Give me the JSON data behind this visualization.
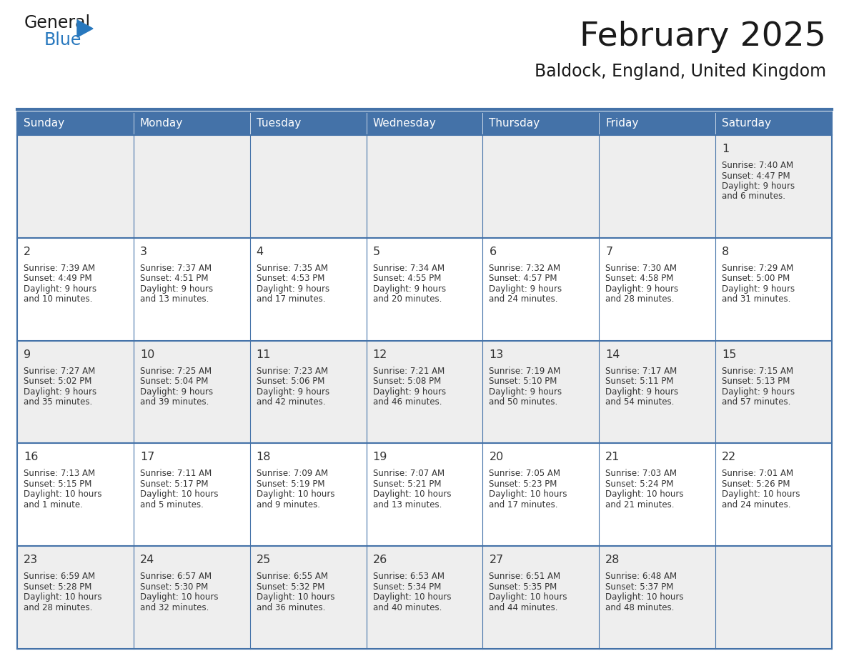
{
  "title": "February 2025",
  "subtitle": "Baldock, England, United Kingdom",
  "days_of_week": [
    "Sunday",
    "Monday",
    "Tuesday",
    "Wednesday",
    "Thursday",
    "Friday",
    "Saturday"
  ],
  "header_bg": "#4472A8",
  "header_text": "#FFFFFF",
  "row_bg_odd": "#EEEEEE",
  "row_bg_even": "#FFFFFF",
  "border_color": "#4472A8",
  "day_number_color": "#333333",
  "text_color": "#333333",
  "title_color": "#1a1a1a",
  "subtitle_color": "#1a1a1a",
  "logo_color_general": "#1a1a1a",
  "logo_color_blue": "#2878BE",
  "logo_triangle_color": "#2878BE",
  "calendar_data": [
    [
      null,
      null,
      null,
      null,
      null,
      null,
      {
        "day": 1,
        "sunrise": "7:40 AM",
        "sunset": "4:47 PM",
        "daylight": "9 hours and 6 minutes"
      }
    ],
    [
      {
        "day": 2,
        "sunrise": "7:39 AM",
        "sunset": "4:49 PM",
        "daylight": "9 hours and 10 minutes"
      },
      {
        "day": 3,
        "sunrise": "7:37 AM",
        "sunset": "4:51 PM",
        "daylight": "9 hours and 13 minutes"
      },
      {
        "day": 4,
        "sunrise": "7:35 AM",
        "sunset": "4:53 PM",
        "daylight": "9 hours and 17 minutes"
      },
      {
        "day": 5,
        "sunrise": "7:34 AM",
        "sunset": "4:55 PM",
        "daylight": "9 hours and 20 minutes"
      },
      {
        "day": 6,
        "sunrise": "7:32 AM",
        "sunset": "4:57 PM",
        "daylight": "9 hours and 24 minutes"
      },
      {
        "day": 7,
        "sunrise": "7:30 AM",
        "sunset": "4:58 PM",
        "daylight": "9 hours and 28 minutes"
      },
      {
        "day": 8,
        "sunrise": "7:29 AM",
        "sunset": "5:00 PM",
        "daylight": "9 hours and 31 minutes"
      }
    ],
    [
      {
        "day": 9,
        "sunrise": "7:27 AM",
        "sunset": "5:02 PM",
        "daylight": "9 hours and 35 minutes"
      },
      {
        "day": 10,
        "sunrise": "7:25 AM",
        "sunset": "5:04 PM",
        "daylight": "9 hours and 39 minutes"
      },
      {
        "day": 11,
        "sunrise": "7:23 AM",
        "sunset": "5:06 PM",
        "daylight": "9 hours and 42 minutes"
      },
      {
        "day": 12,
        "sunrise": "7:21 AM",
        "sunset": "5:08 PM",
        "daylight": "9 hours and 46 minutes"
      },
      {
        "day": 13,
        "sunrise": "7:19 AM",
        "sunset": "5:10 PM",
        "daylight": "9 hours and 50 minutes"
      },
      {
        "day": 14,
        "sunrise": "7:17 AM",
        "sunset": "5:11 PM",
        "daylight": "9 hours and 54 minutes"
      },
      {
        "day": 15,
        "sunrise": "7:15 AM",
        "sunset": "5:13 PM",
        "daylight": "9 hours and 57 minutes"
      }
    ],
    [
      {
        "day": 16,
        "sunrise": "7:13 AM",
        "sunset": "5:15 PM",
        "daylight": "10 hours and 1 minute"
      },
      {
        "day": 17,
        "sunrise": "7:11 AM",
        "sunset": "5:17 PM",
        "daylight": "10 hours and 5 minutes"
      },
      {
        "day": 18,
        "sunrise": "7:09 AM",
        "sunset": "5:19 PM",
        "daylight": "10 hours and 9 minutes"
      },
      {
        "day": 19,
        "sunrise": "7:07 AM",
        "sunset": "5:21 PM",
        "daylight": "10 hours and 13 minutes"
      },
      {
        "day": 20,
        "sunrise": "7:05 AM",
        "sunset": "5:23 PM",
        "daylight": "10 hours and 17 minutes"
      },
      {
        "day": 21,
        "sunrise": "7:03 AM",
        "sunset": "5:24 PM",
        "daylight": "10 hours and 21 minutes"
      },
      {
        "day": 22,
        "sunrise": "7:01 AM",
        "sunset": "5:26 PM",
        "daylight": "10 hours and 24 minutes"
      }
    ],
    [
      {
        "day": 23,
        "sunrise": "6:59 AM",
        "sunset": "5:28 PM",
        "daylight": "10 hours and 28 minutes"
      },
      {
        "day": 24,
        "sunrise": "6:57 AM",
        "sunset": "5:30 PM",
        "daylight": "10 hours and 32 minutes"
      },
      {
        "day": 25,
        "sunrise": "6:55 AM",
        "sunset": "5:32 PM",
        "daylight": "10 hours and 36 minutes"
      },
      {
        "day": 26,
        "sunrise": "6:53 AM",
        "sunset": "5:34 PM",
        "daylight": "10 hours and 40 minutes"
      },
      {
        "day": 27,
        "sunrise": "6:51 AM",
        "sunset": "5:35 PM",
        "daylight": "10 hours and 44 minutes"
      },
      {
        "day": 28,
        "sunrise": "6:48 AM",
        "sunset": "5:37 PM",
        "daylight": "10 hours and 48 minutes"
      },
      null
    ]
  ]
}
